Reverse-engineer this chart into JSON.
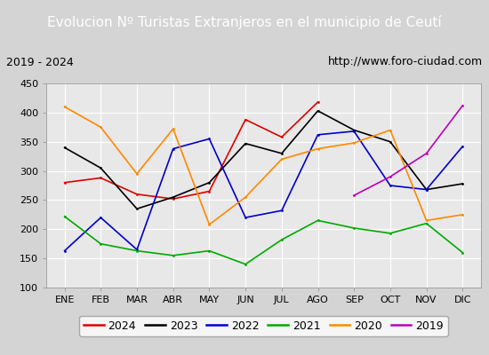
{
  "title": "Evolucion Nº Turistas Extranjeros en el municipio de Ceutí",
  "subtitle_left": "2019 - 2024",
  "subtitle_right": "http://www.foro-ciudad.com",
  "months": [
    "ENE",
    "FEB",
    "MAR",
    "ABR",
    "MAY",
    "JUN",
    "JUL",
    "AGO",
    "SEP",
    "OCT",
    "NOV",
    "DIC"
  ],
  "ylim": [
    100,
    450
  ],
  "yticks": [
    100,
    150,
    200,
    250,
    300,
    350,
    400,
    450
  ],
  "series": {
    "2024": {
      "values": [
        280,
        288,
        260,
        252,
        265,
        388,
        358,
        418,
        null,
        null,
        null,
        null
      ],
      "color": "#dd0000"
    },
    "2023": {
      "values": [
        340,
        305,
        235,
        255,
        280,
        347,
        330,
        403,
        370,
        350,
        268,
        278
      ],
      "color": "#000000"
    },
    "2022": {
      "values": [
        163,
        220,
        165,
        338,
        355,
        220,
        232,
        362,
        368,
        275,
        268,
        342
      ],
      "color": "#0000cc"
    },
    "2021": {
      "values": [
        222,
        175,
        163,
        155,
        163,
        140,
        182,
        215,
        202,
        193,
        210,
        160
      ],
      "color": "#00aa00"
    },
    "2020": {
      "values": [
        410,
        375,
        295,
        372,
        208,
        255,
        320,
        338,
        348,
        370,
        215,
        225
      ],
      "color": "#ff8800"
    },
    "2019": {
      "values": [
        null,
        null,
        null,
        null,
        null,
        null,
        null,
        null,
        258,
        290,
        330,
        412
      ],
      "color": "#bb00bb"
    }
  },
  "bg_color": "#d4d4d4",
  "plot_bg_color": "#e8e8e8",
  "title_bg_color": "#4d9fd6",
  "subtitle_bg_color": "#ffffff",
  "grid_color": "#ffffff",
  "title_color": "#ffffff",
  "title_fontsize": 11,
  "subtitle_fontsize": 9,
  "tick_fontsize": 8,
  "legend_fontsize": 9,
  "linewidth": 1.2
}
